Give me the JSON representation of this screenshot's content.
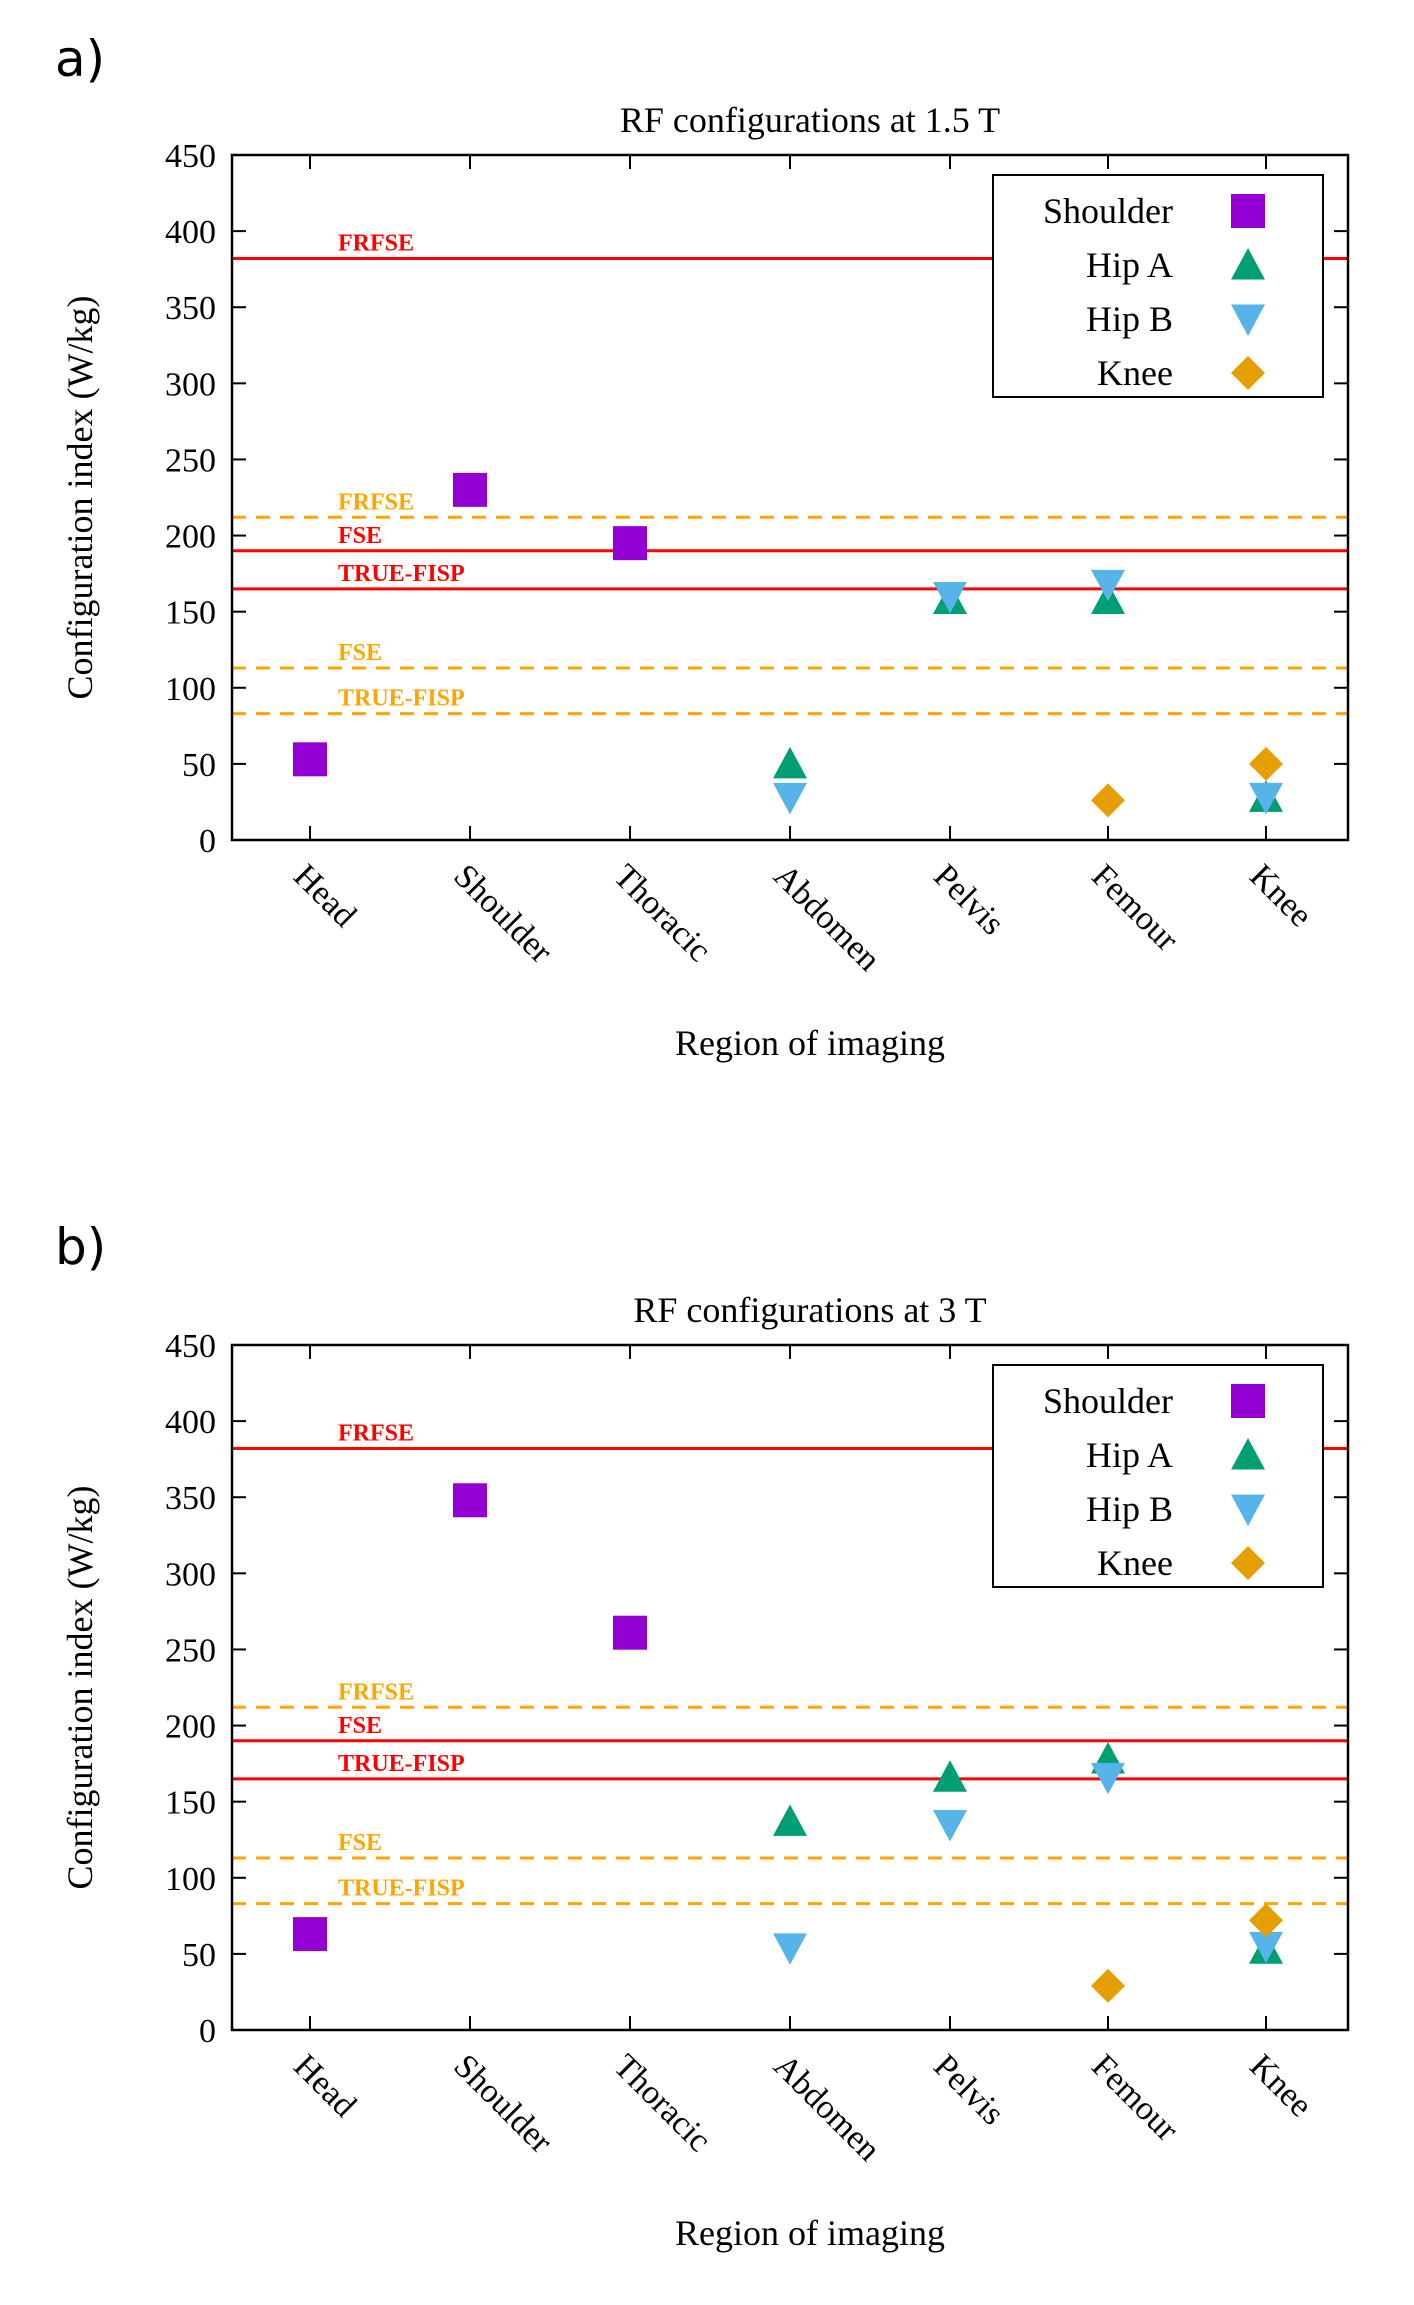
{
  "panel_labels": [
    "a)",
    "b)"
  ],
  "chart_data": [
    {
      "type": "scatter",
      "title": "RF configurations at 1.5 T",
      "xlabel": "Region of imaging",
      "ylabel": "Configuration index (W/kg)",
      "categories": [
        "Head",
        "Shoulder",
        "Thoracic",
        "Abdomen",
        "Pelvis",
        "Femour",
        "Knee"
      ],
      "ylim": [
        0,
        450
      ],
      "yticks": [
        0,
        50,
        100,
        150,
        200,
        250,
        300,
        350,
        400,
        450
      ],
      "series": [
        {
          "name": "Shoulder",
          "marker": "square",
          "color": "#9400d3",
          "points": [
            [
              "Head",
              53
            ],
            [
              "Shoulder",
              230
            ],
            [
              "Thoracic",
              195
            ]
          ]
        },
        {
          "name": "Hip A",
          "marker": "triangle-up",
          "color": "#009e73",
          "points": [
            [
              "Abdomen",
              50
            ],
            [
              "Pelvis",
              158
            ],
            [
              "Femour",
              158
            ],
            [
              "Knee",
              28
            ]
          ]
        },
        {
          "name": "Hip B",
          "marker": "triangle-down",
          "color": "#56b4e9",
          "points": [
            [
              "Abdomen",
              28
            ],
            [
              "Pelvis",
              160
            ],
            [
              "Femour",
              168
            ],
            [
              "Knee",
              28
            ]
          ]
        },
        {
          "name": "Knee",
          "marker": "diamond",
          "color": "#e69f00",
          "points": [
            [
              "Femour",
              26
            ],
            [
              "Knee",
              50
            ]
          ]
        }
      ],
      "reference_lines": [
        {
          "label": "FRFSE",
          "value": 382,
          "style": "solid",
          "color": "#ff0000"
        },
        {
          "label": "FSE",
          "value": 190,
          "style": "solid",
          "color": "#ff0000"
        },
        {
          "label": "TRUE-FISP",
          "value": 165,
          "style": "solid",
          "color": "#ff0000"
        },
        {
          "label": "FRFSE",
          "value": 212,
          "style": "dashed",
          "color": "#ffa500"
        },
        {
          "label": "FSE",
          "value": 113,
          "style": "dashed",
          "color": "#ffa500"
        },
        {
          "label": "TRUE-FISP",
          "value": 83,
          "style": "dashed",
          "color": "#ffa500"
        }
      ],
      "legend_position": "top-right"
    },
    {
      "type": "scatter",
      "title": "RF configurations at 3 T",
      "xlabel": "Region of imaging",
      "ylabel": "Configuration index (W/kg)",
      "categories": [
        "Head",
        "Shoulder",
        "Thoracic",
        "Abdomen",
        "Pelvis",
        "Femour",
        "Knee"
      ],
      "ylim": [
        0,
        450
      ],
      "yticks": [
        0,
        50,
        100,
        150,
        200,
        250,
        300,
        350,
        400,
        450
      ],
      "series": [
        {
          "name": "Shoulder",
          "marker": "square",
          "color": "#9400d3",
          "points": [
            [
              "Head",
              63
            ],
            [
              "Shoulder",
              348
            ],
            [
              "Thoracic",
              261
            ]
          ]
        },
        {
          "name": "Hip A",
          "marker": "triangle-up",
          "color": "#009e73",
          "points": [
            [
              "Abdomen",
              137
            ],
            [
              "Pelvis",
              166
            ],
            [
              "Femour",
              178
            ],
            [
              "Knee",
              53
            ]
          ]
        },
        {
          "name": "Hip B",
          "marker": "triangle-down",
          "color": "#56b4e9",
          "points": [
            [
              "Abdomen",
              54
            ],
            [
              "Pelvis",
              135
            ],
            [
              "Femour",
              166
            ],
            [
              "Knee",
              55
            ]
          ]
        },
        {
          "name": "Knee",
          "marker": "diamond",
          "color": "#e69f00",
          "points": [
            [
              "Femour",
              29
            ],
            [
              "Knee",
              72
            ]
          ]
        }
      ],
      "reference_lines": [
        {
          "label": "FRFSE",
          "value": 382,
          "style": "solid",
          "color": "#ff0000"
        },
        {
          "label": "FSE",
          "value": 190,
          "style": "solid",
          "color": "#ff0000"
        },
        {
          "label": "TRUE-FISP",
          "value": 165,
          "style": "solid",
          "color": "#ff0000"
        },
        {
          "label": "FRFSE",
          "value": 212,
          "style": "dashed",
          "color": "#ffa500"
        },
        {
          "label": "FSE",
          "value": 113,
          "style": "dashed",
          "color": "#ffa500"
        },
        {
          "label": "TRUE-FISP",
          "value": 83,
          "style": "dashed",
          "color": "#ffa500"
        }
      ],
      "legend_position": "top-right"
    }
  ]
}
